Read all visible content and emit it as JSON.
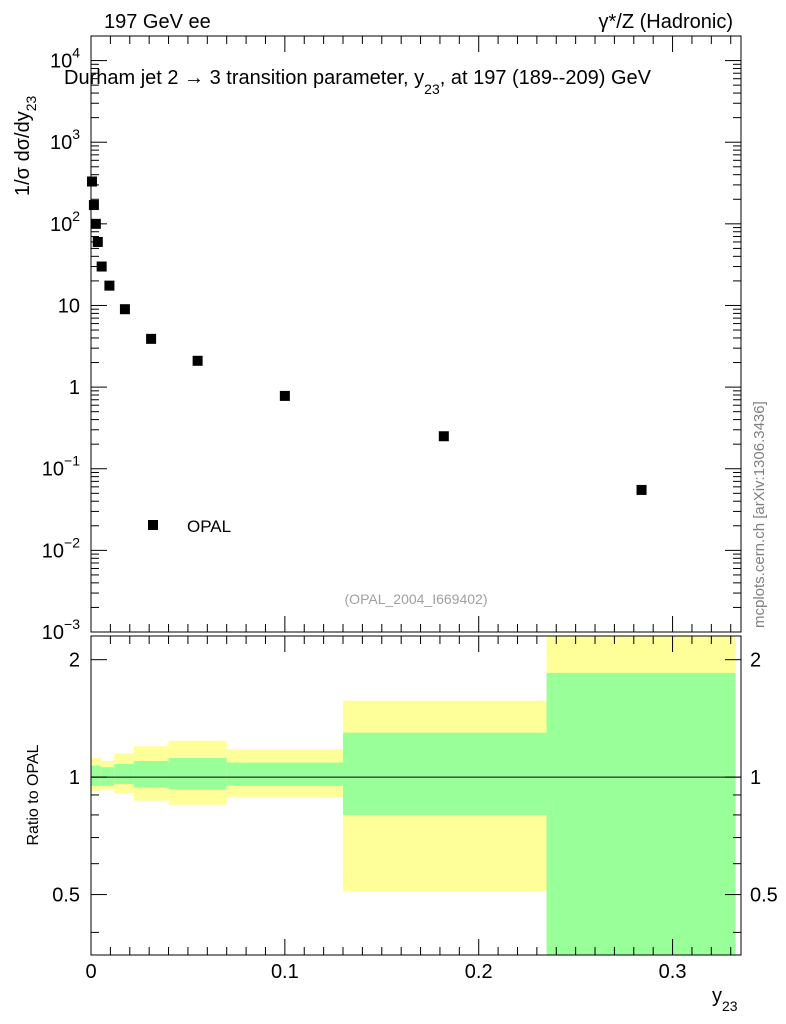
{
  "header": {
    "left_label": "197 GeV ee",
    "right_label": "γ*/Z (Hadronic)"
  },
  "watermark": {
    "side_text": "mcplots.cern.ch [arXiv:1306.3436]",
    "analysis_id": "(OPAL_2004_I669402)"
  },
  "colors": {
    "yellow_band": "#ffff99",
    "green_band": "#99ff99",
    "marker": "#000000"
  },
  "chart_data": [
    {
      "type": "scatter",
      "name": "main",
      "title": "Durham jet 2 → 3 transition parameter, y23, at 197 (189--209) GeV",
      "ylabel": "1/σ  dσ/dy23",
      "yscale": "log",
      "ylim": [
        0.001,
        20000
      ],
      "xlim": [
        0,
        0.3353
      ],
      "legend": {
        "entry": "OPAL",
        "position": "bottom-left"
      },
      "y_ticks": [
        {
          "value": 0.001,
          "base": "10",
          "exp": "−3"
        },
        {
          "value": 0.01,
          "base": "10",
          "exp": "−2"
        },
        {
          "value": 0.1,
          "base": "10",
          "exp": "−1"
        },
        {
          "value": 1,
          "base": "1",
          "exp": ""
        },
        {
          "value": 10,
          "base": "10",
          "exp": ""
        },
        {
          "value": 100,
          "base": "10",
          "exp": "2"
        },
        {
          "value": 1000,
          "base": "10",
          "exp": "3"
        },
        {
          "value": 10000,
          "base": "10",
          "exp": "4"
        }
      ],
      "series": [
        {
          "name": "OPAL",
          "points": [
            {
              "x": 0.0005,
              "y": 330
            },
            {
              "x": 0.0015,
              "y": 170
            },
            {
              "x": 0.0025,
              "y": 100
            },
            {
              "x": 0.0035,
              "y": 60
            },
            {
              "x": 0.0055,
              "y": 30
            },
            {
              "x": 0.0095,
              "y": 17.5
            },
            {
              "x": 0.0175,
              "y": 9
            },
            {
              "x": 0.031,
              "y": 3.9
            },
            {
              "x": 0.055,
              "y": 2.1
            },
            {
              "x": 0.1,
              "y": 0.78
            },
            {
              "x": 0.182,
              "y": 0.25
            },
            {
              "x": 0.284,
              "y": 0.055
            }
          ]
        }
      ]
    },
    {
      "type": "area",
      "name": "ratio",
      "ylabel": "Ratio to OPAL",
      "xlabel": "y23",
      "yscale": "log",
      "ylim": [
        0.35,
        2.3
      ],
      "xlim": [
        0,
        0.3353
      ],
      "y_ticks": [
        0.5,
        1,
        2
      ],
      "x_ticks": [
        0,
        0.1,
        0.2,
        0.3
      ],
      "x_tick_labels": [
        "0",
        "0.1",
        "0.2",
        "0.3"
      ],
      "reference_line": 1,
      "bands": [
        {
          "x0": 0.0,
          "x1": 0.005,
          "ylo": 0.92,
          "yhi": 1.12,
          "glo": 0.95,
          "ghi": 1.07
        },
        {
          "x0": 0.005,
          "x1": 0.012,
          "ylo": 0.93,
          "yhi": 1.1,
          "glo": 0.95,
          "ghi": 1.06
        },
        {
          "x0": 0.012,
          "x1": 0.022,
          "ylo": 0.91,
          "yhi": 1.15,
          "glo": 0.96,
          "ghi": 1.08
        },
        {
          "x0": 0.022,
          "x1": 0.04,
          "ylo": 0.87,
          "yhi": 1.2,
          "glo": 0.94,
          "ghi": 1.1
        },
        {
          "x0": 0.04,
          "x1": 0.07,
          "ylo": 0.85,
          "yhi": 1.24,
          "glo": 0.93,
          "ghi": 1.12
        },
        {
          "x0": 0.07,
          "x1": 0.13,
          "ylo": 0.89,
          "yhi": 1.18,
          "glo": 0.95,
          "ghi": 1.09
        },
        {
          "x0": 0.13,
          "x1": 0.235,
          "ylo": 0.51,
          "yhi": 1.57,
          "glo": 0.8,
          "ghi": 1.3
        },
        {
          "x0": 0.235,
          "x1": 0.3325,
          "ylo": 0.35,
          "yhi": 2.3,
          "glo": 0.35,
          "ghi": 1.85
        }
      ]
    }
  ]
}
